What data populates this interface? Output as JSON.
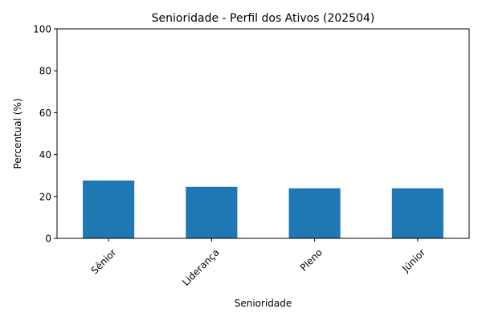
{
  "chart_data": {
    "type": "bar",
    "title": "Senioridade - Perfil dos Ativos (202504)",
    "xlabel": "Senioridade",
    "ylabel": "Percentual (%)",
    "categories": [
      "Sênior",
      "Liderança",
      "Pleno",
      "Júnior"
    ],
    "values": [
      27.6,
      24.6,
      23.9,
      23.9
    ],
    "ylim": [
      0,
      100
    ],
    "yticks": [
      "0",
      "20",
      "40",
      "60",
      "80",
      "100"
    ],
    "grid": false,
    "bar_color": "#1f77b4"
  }
}
